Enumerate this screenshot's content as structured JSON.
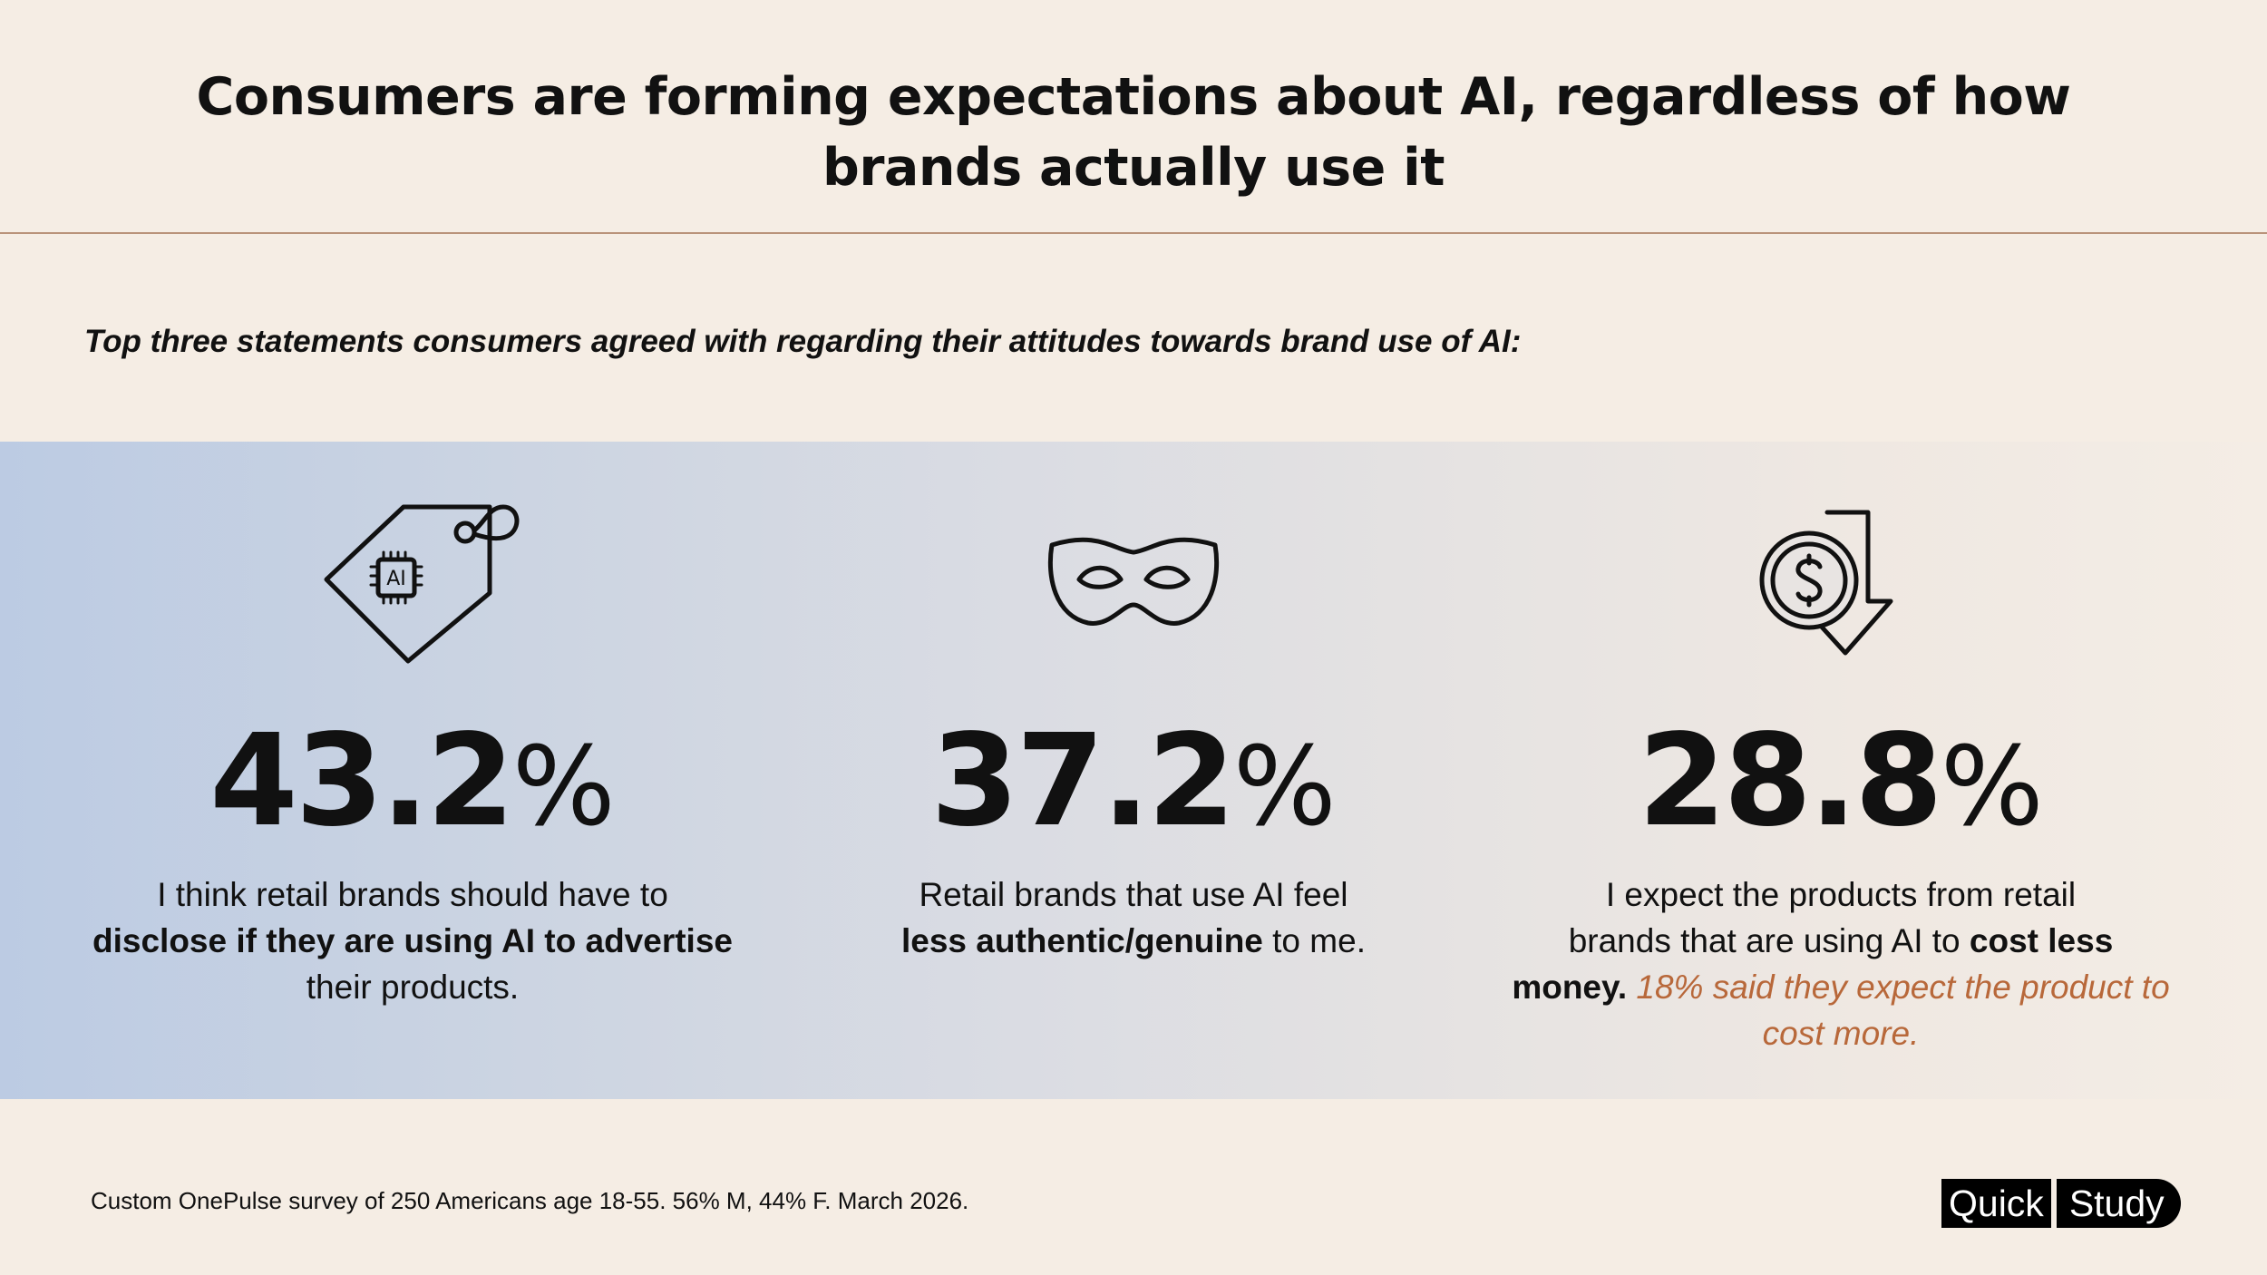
{
  "header": {
    "title_line1": "Consumers are forming expectations about AI, regardless of how",
    "title_line2": "brands actually use it",
    "subtitle": "Top three statements consumers agreed with regarding their attitudes towards brand use of AI:"
  },
  "stats": [
    {
      "icon": "ai-price-tag-icon",
      "icon_label": "AI",
      "value": "43.2",
      "unit": "%",
      "text_line1": "I think retail brands should have to",
      "text_bold": "disclose if they are using AI to advertise",
      "text_line3": "their products."
    },
    {
      "icon": "mask-icon",
      "value": "37.2",
      "unit": "%",
      "text_line1": "Retail brands that use AI feel",
      "text_bold": "less authentic/genuine",
      "text_after": " to me."
    },
    {
      "icon": "dollar-down-arrow-icon",
      "value": "28.8",
      "unit": "%",
      "text_line1": "I expect the products from retail",
      "text_line2a": "brands that are using AI to ",
      "text_bold_a": "cost less",
      "text_bold_b": "money.",
      "note": "18% said they expect the product to cost more."
    }
  ],
  "footer": {
    "source": "Custom OnePulse survey of 250 Americans age 18-55. 56% M, 44% F. March 2026.",
    "logo_left": "Quick",
    "logo_right": "Study"
  },
  "colors": {
    "background": "#f5ede4",
    "rule": "#b9937a",
    "note": "#b8683a",
    "band_left": "#bccbe3",
    "band_right": "#f4ede5"
  }
}
